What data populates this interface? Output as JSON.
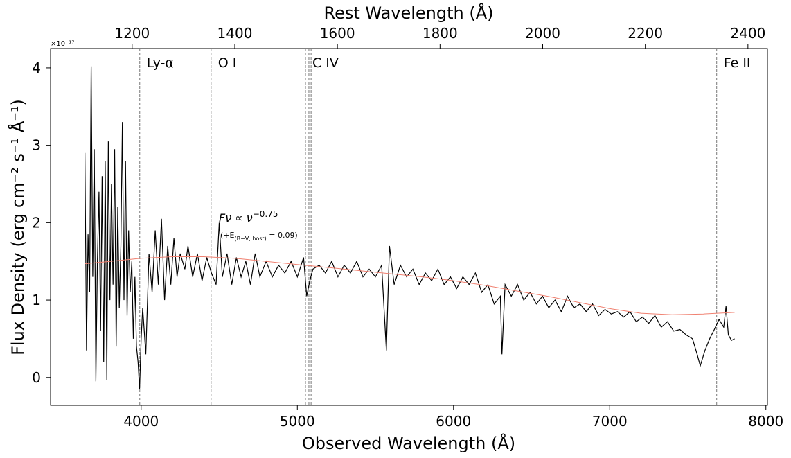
{
  "chart_data": {
    "type": "line",
    "xlabel": "Observed Wavelength (Å)",
    "ylabel": "Flux Density (erg cm⁻² s⁻¹ Å⁻¹)",
    "x2label": "Rest Wavelength (Å)",
    "y_offset_label": "×10⁻¹⁷",
    "xlim": [
      3420,
      8010
    ],
    "xticks": [
      4000,
      5000,
      6000,
      7000,
      8000
    ],
    "x2lim": [
      1041,
      2438
    ],
    "x2ticks": [
      1200,
      1400,
      1600,
      1800,
      2000,
      2200,
      2400
    ],
    "ylim": [
      -0.36,
      4.25
    ],
    "yticks": [
      0,
      1,
      2,
      3,
      4
    ],
    "series": [
      {
        "color": "#000000",
        "x": [
          3640,
          3650,
          3660,
          3670,
          3680,
          3690,
          3700,
          3710,
          3720,
          3730,
          3740,
          3750,
          3760,
          3770,
          3780,
          3790,
          3800,
          3810,
          3820,
          3830,
          3840,
          3850,
          3860,
          3870,
          3880,
          3890,
          3900,
          3910,
          3920,
          3930,
          3940,
          3950,
          3960,
          3970,
          3980,
          3990,
          4000,
          4010,
          4030,
          4050,
          4070,
          4090,
          4110,
          4130,
          4150,
          4170,
          4190,
          4210,
          4230,
          4250,
          4280,
          4300,
          4330,
          4360,
          4390,
          4420,
          4450,
          4480,
          4500,
          4520,
          4550,
          4580,
          4610,
          4640,
          4670,
          4700,
          4730,
          4760,
          4800,
          4840,
          4880,
          4920,
          4960,
          5000,
          5040,
          5060,
          5080,
          5100,
          5140,
          5180,
          5220,
          5260,
          5300,
          5340,
          5380,
          5420,
          5460,
          5500,
          5540,
          5570,
          5590,
          5620,
          5660,
          5700,
          5740,
          5780,
          5820,
          5860,
          5900,
          5940,
          5980,
          6020,
          6060,
          6100,
          6140,
          6180,
          6220,
          6260,
          6300,
          6310,
          6330,
          6370,
          6410,
          6450,
          6490,
          6530,
          6570,
          6610,
          6650,
          6690,
          6730,
          6770,
          6810,
          6850,
          6890,
          6930,
          6970,
          7010,
          7050,
          7090,
          7130,
          7170,
          7210,
          7250,
          7290,
          7330,
          7370,
          7410,
          7450,
          7490,
          7530,
          7560,
          7580,
          7610,
          7640,
          7670,
          7700,
          7730,
          7745,
          7760,
          7780,
          7800
        ],
        "values": [
          2.9,
          0.35,
          1.85,
          1.1,
          4.02,
          1.3,
          2.95,
          -0.05,
          1.5,
          2.4,
          0.6,
          2.6,
          0.2,
          2.8,
          -0.03,
          3.05,
          1.0,
          2.5,
          1.2,
          2.95,
          0.4,
          2.2,
          0.9,
          1.7,
          3.3,
          1.0,
          2.8,
          0.8,
          1.9,
          1.1,
          1.5,
          0.5,
          1.3,
          0.4,
          0.2,
          -0.15,
          0.5,
          0.9,
          0.3,
          1.6,
          1.1,
          1.9,
          1.2,
          2.05,
          1.0,
          1.7,
          1.2,
          1.8,
          1.3,
          1.6,
          1.4,
          1.7,
          1.3,
          1.6,
          1.25,
          1.55,
          1.35,
          1.2,
          2.0,
          1.3,
          1.6,
          1.2,
          1.55,
          1.3,
          1.5,
          1.2,
          1.6,
          1.3,
          1.5,
          1.3,
          1.45,
          1.35,
          1.5,
          1.3,
          1.55,
          1.05,
          1.25,
          1.4,
          1.45,
          1.35,
          1.5,
          1.3,
          1.45,
          1.35,
          1.5,
          1.3,
          1.4,
          1.3,
          1.45,
          0.35,
          1.7,
          1.2,
          1.45,
          1.3,
          1.4,
          1.2,
          1.35,
          1.25,
          1.4,
          1.2,
          1.3,
          1.15,
          1.3,
          1.2,
          1.35,
          1.1,
          1.2,
          0.95,
          1.05,
          0.3,
          1.2,
          1.05,
          1.2,
          1.0,
          1.1,
          0.95,
          1.05,
          0.9,
          1.0,
          0.85,
          1.05,
          0.9,
          0.95,
          0.85,
          0.95,
          0.8,
          0.88,
          0.82,
          0.85,
          0.78,
          0.85,
          0.72,
          0.78,
          0.7,
          0.8,
          0.65,
          0.72,
          0.6,
          0.62,
          0.55,
          0.5,
          0.3,
          0.15,
          0.35,
          0.5,
          0.62,
          0.75,
          0.65,
          0.92,
          0.55,
          0.48,
          0.5
        ]
      },
      {
        "color": "#f08070",
        "x": [
          3640,
          3800,
          4000,
          4200,
          4400,
          4600,
          4800,
          5000,
          5200,
          5400,
          5600,
          5800,
          6000,
          6200,
          6400,
          6600,
          6800,
          7000,
          7200,
          7400,
          7600,
          7800
        ],
        "values": [
          1.47,
          1.5,
          1.54,
          1.56,
          1.56,
          1.54,
          1.5,
          1.46,
          1.42,
          1.38,
          1.34,
          1.3,
          1.25,
          1.19,
          1.12,
          1.05,
          0.97,
          0.89,
          0.83,
          0.81,
          0.82,
          0.84
        ]
      }
    ],
    "lines": [
      {
        "x": 3991,
        "label": "Ly-α"
      },
      {
        "x": 4448,
        "label": "O I"
      },
      {
        "x": 5052,
        "label": "C IV"
      },
      {
        "x": 5074,
        "label": null
      },
      {
        "x": 5088,
        "label": null
      },
      {
        "x": 7685,
        "label": "Fe II"
      }
    ],
    "annotation": {
      "base": "Fν ∝ ν",
      "exponent": "−0.75",
      "note": "(+E",
      "note_sub": "(B−V, host)",
      "note_end": " = 0.09)"
    }
  }
}
